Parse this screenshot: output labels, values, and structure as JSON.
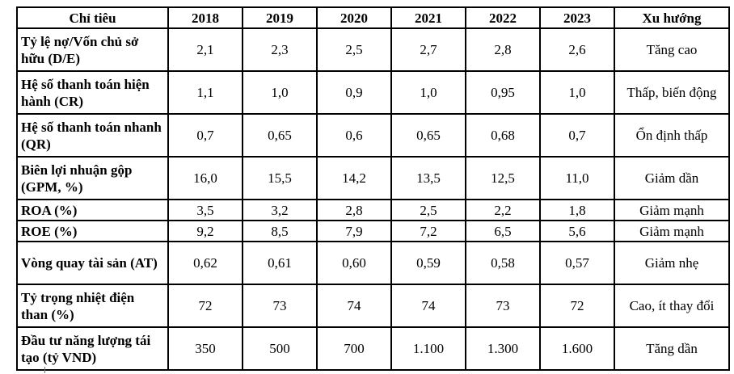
{
  "table": {
    "columns": [
      "Chỉ tiêu",
      "2018",
      "2019",
      "2020",
      "2021",
      "2022",
      "2023",
      "Xu hướng"
    ],
    "rows": [
      {
        "label": "Tỷ lệ nợ/Vốn chủ sở hữu (D/E)",
        "values": [
          "2,1",
          "2,3",
          "2,5",
          "2,7",
          "2,8",
          "2,6"
        ],
        "trend": "Tăng cao"
      },
      {
        "label": "Hệ số thanh toán hiện hành (CR)",
        "values": [
          "1,1",
          "1,0",
          "0,9",
          "1,0",
          "0,95",
          "1,0"
        ],
        "trend": "Thấp, biến động"
      },
      {
        "label": "Hệ số thanh toán nhanh (QR)",
        "values": [
          "0,7",
          "0,65",
          "0,6",
          "0,65",
          "0,68",
          "0,7"
        ],
        "trend": "Ổn định thấp"
      },
      {
        "label": "Biên lợi nhuận gộp (GPM, %)",
        "values": [
          "16,0",
          "15,5",
          "14,2",
          "13,5",
          "12,5",
          "11,0"
        ],
        "trend": "Giảm dần"
      },
      {
        "label": "ROA (%)",
        "values": [
          "3,5",
          "3,2",
          "2,8",
          "2,5",
          "2,2",
          "1,8"
        ],
        "trend": "Giảm mạnh"
      },
      {
        "label": "ROE (%)",
        "values": [
          "9,2",
          "8,5",
          "7,9",
          "7,2",
          "6,5",
          "5,6"
        ],
        "trend": "Giảm mạnh"
      },
      {
        "label": "Vòng quay tài sản (AT)",
        "values": [
          "0,62",
          "0,61",
          "0,60",
          "0,59",
          "0,58",
          "0,57"
        ],
        "trend": "Giảm nhẹ"
      },
      {
        "label": "Tỷ trọng nhiệt điện than (%)",
        "values": [
          "72",
          "73",
          "74",
          "74",
          "73",
          "72"
        ],
        "trend": "Cao, ít thay đổi"
      },
      {
        "label": "Đầu tư năng lượng tái tạo (tỷ VND)",
        "values": [
          "350",
          "500",
          "700",
          "1.100",
          "1.300",
          "1.600"
        ],
        "trend": "Tăng dần"
      }
    ]
  }
}
